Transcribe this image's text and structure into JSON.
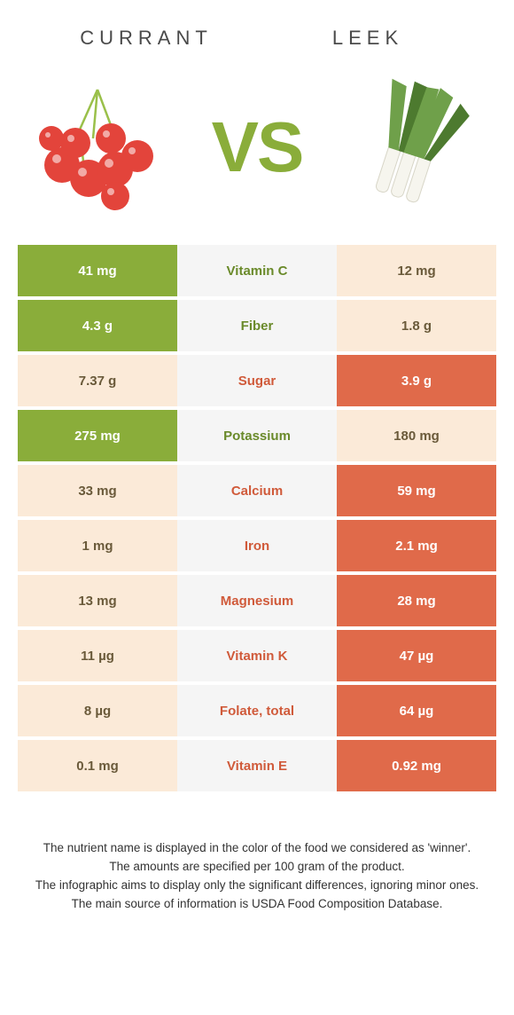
{
  "colors": {
    "left_win": "#8aad3a",
    "right_win": "#e06a4a",
    "lose_bg": "#fbead8",
    "lose_text": "#6a5a3a",
    "mid_bg": "#f5f5f5",
    "mid_leftwin_text": "#6a8a2a",
    "mid_rightwin_text": "#d05a3a",
    "vs_color": "#8aad3a"
  },
  "header": {
    "left_title": "CURRANT",
    "right_title": "LEEK",
    "vs": "VS"
  },
  "rows": [
    {
      "left": "41 mg",
      "label": "Vitamin C",
      "right": "12 mg",
      "winner": "left"
    },
    {
      "left": "4.3 g",
      "label": "Fiber",
      "right": "1.8 g",
      "winner": "left"
    },
    {
      "left": "7.37 g",
      "label": "Sugar",
      "right": "3.9 g",
      "winner": "right"
    },
    {
      "left": "275 mg",
      "label": "Potassium",
      "right": "180 mg",
      "winner": "left"
    },
    {
      "left": "33 mg",
      "label": "Calcium",
      "right": "59 mg",
      "winner": "right"
    },
    {
      "left": "1 mg",
      "label": "Iron",
      "right": "2.1 mg",
      "winner": "right"
    },
    {
      "left": "13 mg",
      "label": "Magnesium",
      "right": "28 mg",
      "winner": "right"
    },
    {
      "left": "11 µg",
      "label": "Vitamin K",
      "right": "47 µg",
      "winner": "right"
    },
    {
      "left": "8 µg",
      "label": "Folate, total",
      "right": "64 µg",
      "winner": "right"
    },
    {
      "left": "0.1 mg",
      "label": "Vitamin E",
      "right": "0.92 mg",
      "winner": "right"
    }
  ],
  "footer": {
    "line1": "The nutrient name is displayed in the color of the food we considered as 'winner'.",
    "line2": "The amounts are specified per 100 gram of the product.",
    "line3": "The infographic aims to display only the significant differences, ignoring minor ones.",
    "line4": "The main source of information is USDA Food Composition Database."
  }
}
